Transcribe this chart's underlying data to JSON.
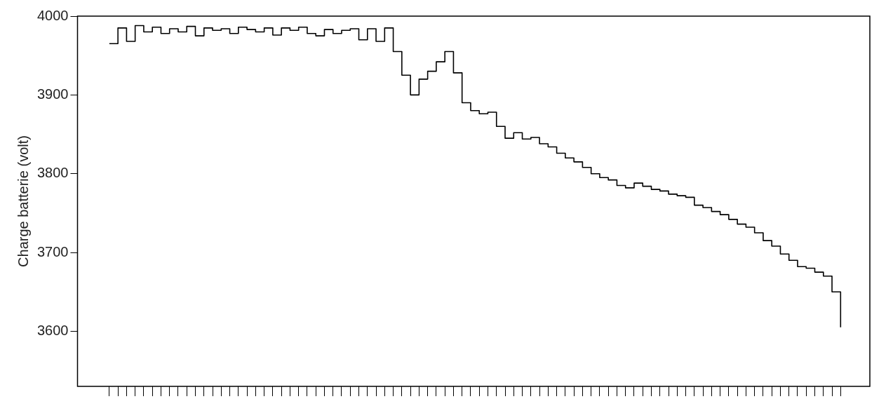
{
  "chart_data": {
    "type": "step",
    "ylabel": "Charge batterie (volt)",
    "categories": [
      null,
      null,
      null,
      null,
      null,
      null,
      null,
      null,
      null,
      null,
      null,
      null,
      null,
      null,
      null,
      null,
      null,
      null,
      null,
      null,
      null,
      null,
      null,
      null,
      null,
      null,
      null,
      null,
      null,
      null,
      null,
      null,
      null,
      null,
      null,
      null,
      null,
      null,
      null,
      null,
      null,
      null,
      null,
      null,
      null,
      null,
      null,
      null,
      null,
      null,
      null,
      null,
      null,
      null,
      null,
      null,
      null,
      null,
      null,
      null,
      null,
      null,
      null,
      null,
      null,
      null,
      null,
      null,
      null,
      null,
      null,
      null,
      null,
      null,
      null,
      null,
      null,
      null,
      null,
      null,
      null,
      null,
      null,
      null,
      null,
      null
    ],
    "series": [
      {
        "color": "#000000",
        "values": [
          3965,
          3985,
          3968,
          3988,
          3980,
          3986,
          3978,
          3984,
          3980,
          3987,
          3975,
          3985,
          3982,
          3984,
          3978,
          3986,
          3983,
          3980,
          3985,
          3976,
          3985,
          3982,
          3986,
          3978,
          3975,
          3983,
          3978,
          3982,
          3984,
          3970,
          3984,
          3968,
          3985,
          3955,
          3925,
          3900,
          3920,
          3930,
          3942,
          3955,
          3928,
          3890,
          3880,
          3876,
          3878,
          3860,
          3845,
          3852,
          3844,
          3846,
          3838,
          3834,
          3826,
          3820,
          3815,
          3808,
          3800,
          3795,
          3792,
          3785,
          3782,
          3788,
          3784,
          3780,
          3778,
          3774,
          3772,
          3770,
          3760,
          3757,
          3752,
          3748,
          3742,
          3736,
          3732,
          3725,
          3715,
          3708,
          3698,
          3690,
          3682,
          3680,
          3675,
          3670,
          3650,
          3605
        ]
      }
    ],
    "ylim": [
      3530,
      4000
    ],
    "yticks": [
      3600,
      3700,
      3800,
      3900,
      4000
    ],
    "grid": false,
    "legend": false,
    "tick_labels": "y"
  }
}
